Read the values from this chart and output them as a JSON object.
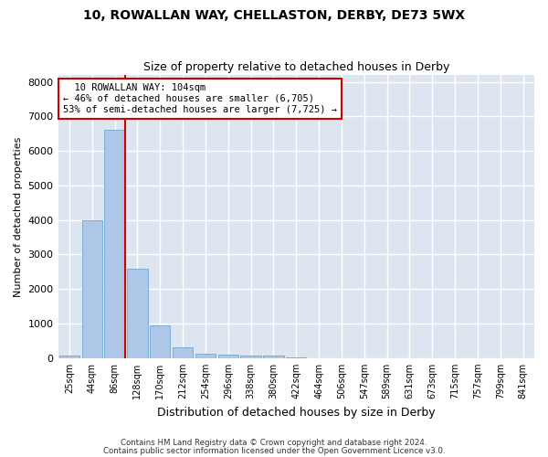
{
  "title": "10, ROWALLAN WAY, CHELLASTON, DERBY, DE73 5WX",
  "subtitle": "Size of property relative to detached houses in Derby",
  "xlabel": "Distribution of detached houses by size in Derby",
  "ylabel": "Number of detached properties",
  "bar_color": "#aec6e8",
  "bar_edge_color": "#7aafd4",
  "background_color": "#dde6f0",
  "grid_color": "#ffffff",
  "categories": [
    "25sqm",
    "44sqm",
    "86sqm",
    "128sqm",
    "170sqm",
    "212sqm",
    "254sqm",
    "296sqm",
    "338sqm",
    "380sqm",
    "422sqm",
    "464sqm",
    "506sqm",
    "547sqm",
    "589sqm",
    "631sqm",
    "673sqm",
    "715sqm",
    "757sqm",
    "799sqm",
    "841sqm"
  ],
  "values": [
    70,
    3980,
    6620,
    2600,
    950,
    300,
    120,
    100,
    80,
    80,
    20,
    0,
    0,
    0,
    0,
    0,
    0,
    0,
    0,
    0,
    0
  ],
  "ylim": [
    0,
    8200
  ],
  "yticks": [
    0,
    1000,
    2000,
    3000,
    4000,
    5000,
    6000,
    7000,
    8000
  ],
  "red_line_x": 2.45,
  "annotation_text": "  10 ROWALLAN WAY: 104sqm\n← 46% of detached houses are smaller (6,705)\n53% of semi-detached houses are larger (7,725) →",
  "annotation_box_color": "#ffffff",
  "annotation_box_edge": "#cc0000",
  "footer_line1": "Contains HM Land Registry data © Crown copyright and database right 2024.",
  "footer_line2": "Contains public sector information licensed under the Open Government Licence v3.0."
}
